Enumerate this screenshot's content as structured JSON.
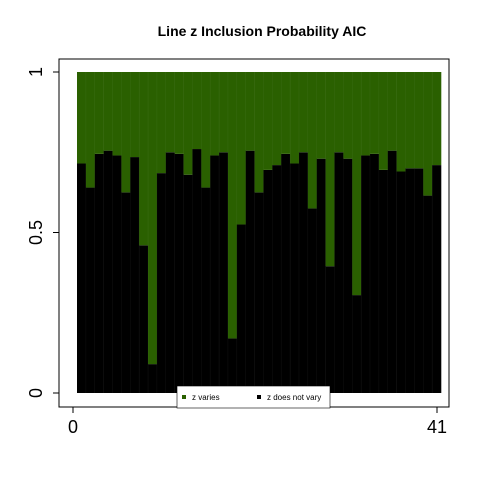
{
  "chart_data": {
    "type": "bar",
    "stacked": true,
    "title": "Line z Inclusion Probability AIC",
    "xlabel": "",
    "ylabel": "",
    "x_tick_labels": [
      "0",
      "41"
    ],
    "y_tick_labels": [
      "0",
      "0.5",
      "1"
    ],
    "ylim": [
      0,
      1
    ],
    "n_bars": 41,
    "series": [
      {
        "name": "z does not vary",
        "color": "#000000",
        "values": [
          0.715,
          0.64,
          0.745,
          0.755,
          0.74,
          0.625,
          0.735,
          0.46,
          0.09,
          0.685,
          0.75,
          0.745,
          0.68,
          0.76,
          0.64,
          0.74,
          0.75,
          0.17,
          0.525,
          0.755,
          0.625,
          0.695,
          0.71,
          0.745,
          0.715,
          0.75,
          0.575,
          0.73,
          0.395,
          0.75,
          0.73,
          0.305,
          0.74,
          0.745,
          0.695,
          0.755,
          0.69,
          0.7,
          0.7,
          0.615,
          0.71
        ]
      },
      {
        "name": "z varies",
        "color": "#2a6000",
        "values": [
          0.285,
          0.36,
          0.255,
          0.245,
          0.26,
          0.375,
          0.265,
          0.54,
          0.91,
          0.315,
          0.25,
          0.255,
          0.32,
          0.24,
          0.36,
          0.26,
          0.25,
          0.83,
          0.475,
          0.245,
          0.375,
          0.305,
          0.29,
          0.255,
          0.285,
          0.25,
          0.425,
          0.27,
          0.605,
          0.25,
          0.27,
          0.695,
          0.26,
          0.255,
          0.305,
          0.245,
          0.31,
          0.3,
          0.3,
          0.385,
          0.29
        ]
      }
    ],
    "legend": {
      "position": "bottom-center",
      "entries": [
        "z varies",
        "z does not vary"
      ]
    },
    "grid": false
  }
}
